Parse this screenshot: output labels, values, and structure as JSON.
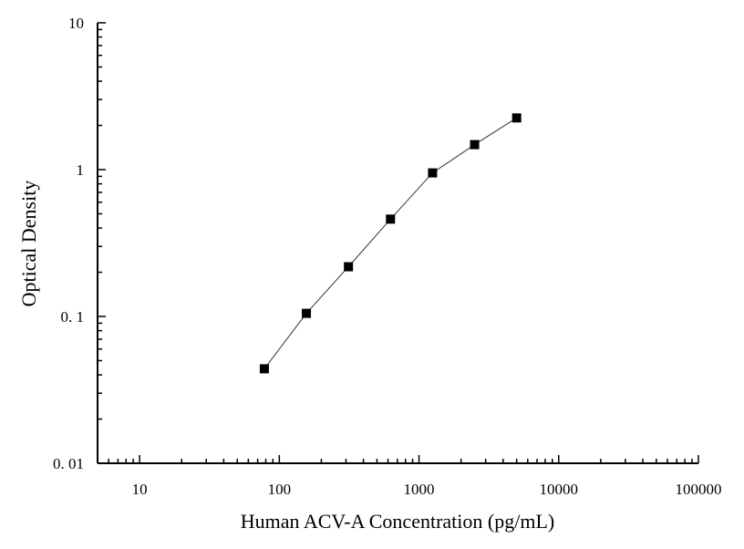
{
  "chart_data": {
    "type": "scatter",
    "title": "",
    "xlabel": "Human ACV-A Concentration (pg/mL)",
    "ylabel": "Optical Density",
    "x_scale": "log",
    "y_scale": "log",
    "xlim": [
      5,
      100000
    ],
    "ylim": [
      0.01,
      10
    ],
    "x_tick_values": [
      10,
      100,
      1000,
      10000,
      100000
    ],
    "x_tick_labels": [
      "10",
      "100",
      "1000",
      "10000",
      "100000"
    ],
    "y_tick_values": [
      0.01,
      0.1,
      1,
      10
    ],
    "y_tick_labels": [
      "0. 01",
      "0. 1",
      "1",
      "10"
    ],
    "grid": false,
    "legend": "none",
    "marker": "square",
    "series": [
      {
        "x": [
          78.125,
          156.25,
          312.5,
          625,
          1250,
          2500,
          5000
        ],
        "y": [
          0.044,
          0.105,
          0.218,
          0.46,
          0.95,
          1.48,
          2.25
        ]
      }
    ]
  }
}
